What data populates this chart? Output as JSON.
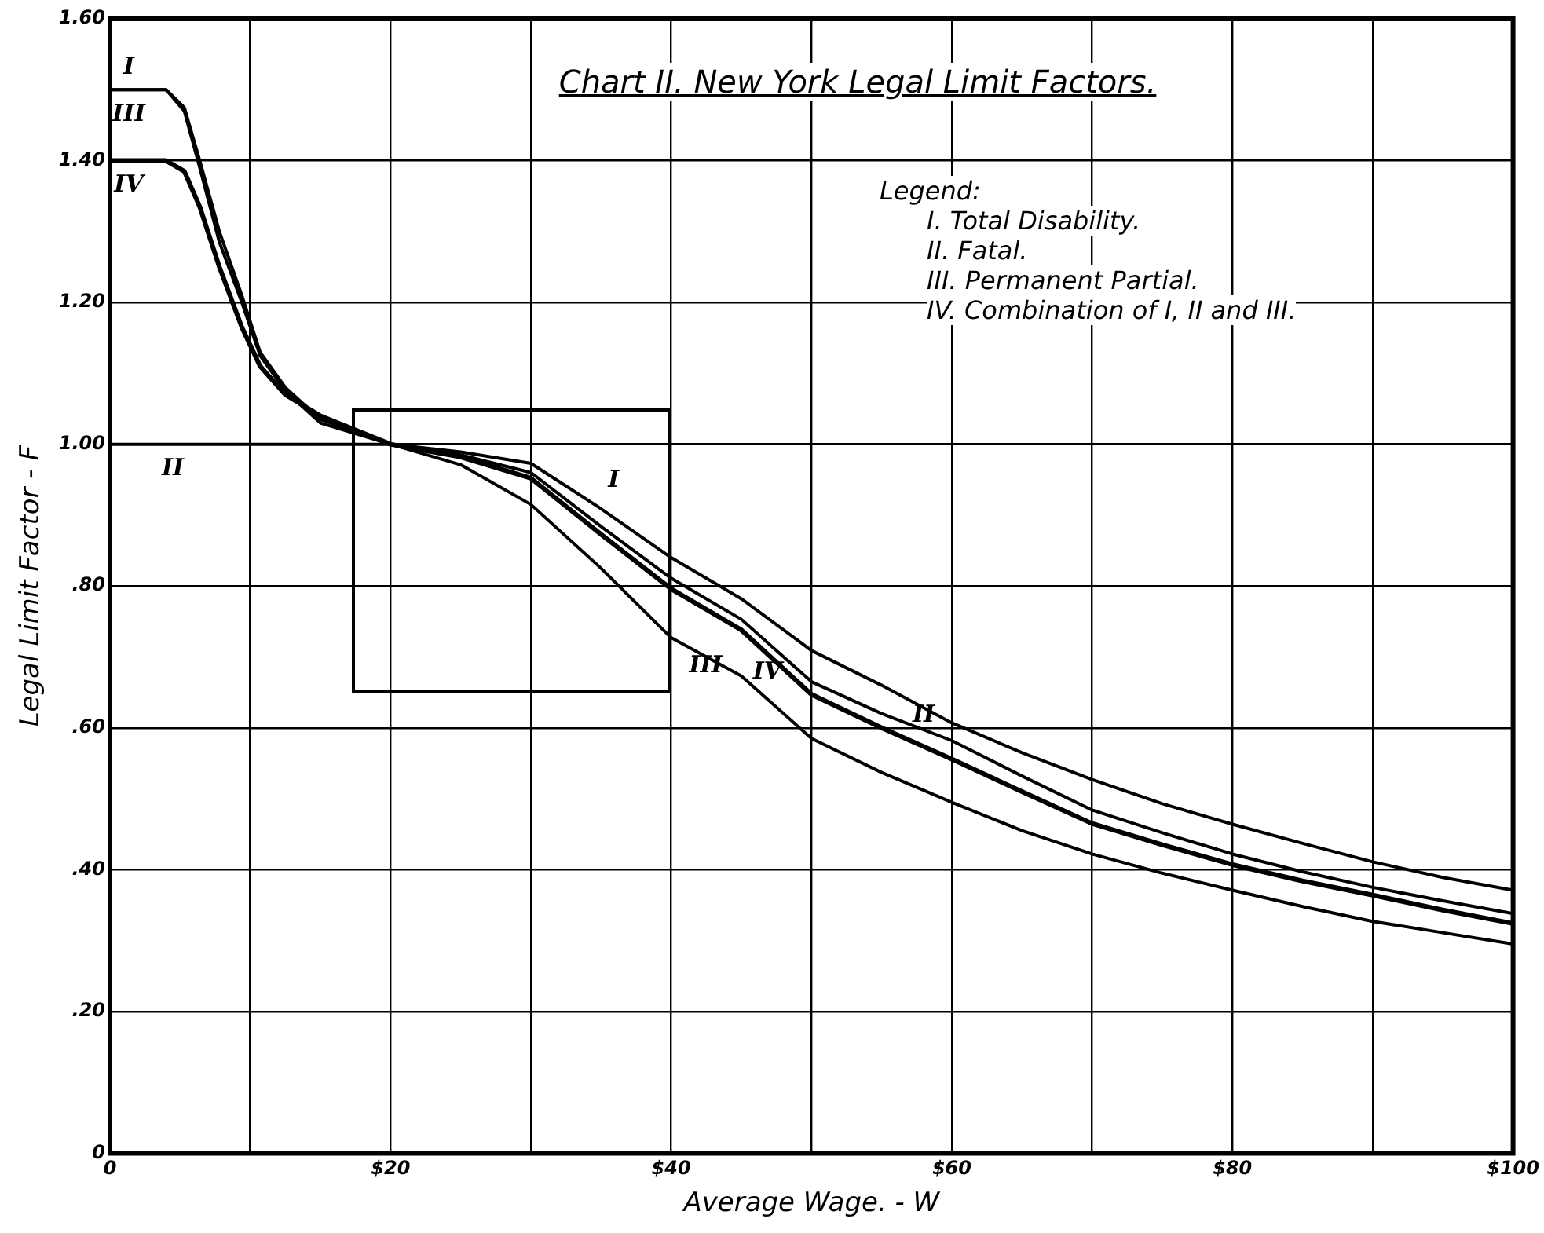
{
  "chart_data": {
    "type": "line",
    "title": "Chart II. New York Legal Limit Factors.",
    "xlabel": "Average Wage. - W",
    "ylabel": "Legal Limit Factor - F",
    "annotations": [
      "Legend:",
      "I. Total Disability.",
      "II. Fatal.",
      "III. Permanent Partial.",
      "IV. Combination of I, II and III."
    ],
    "x": [
      0,
      4,
      5.3,
      6.4,
      7.8,
      9.4,
      10.7,
      12.5,
      15,
      20,
      25,
      30,
      35,
      40,
      45,
      50,
      55,
      60,
      65,
      70,
      75,
      80,
      85,
      90,
      95,
      100
    ],
    "series": [
      {
        "name": "I",
        "color": "#000000",
        "values": [
          1.5,
          1.5,
          1.475,
          1.4,
          1.3,
          1.21,
          1.13,
          1.08,
          1.035,
          1.0,
          0.989,
          0.973,
          0.909,
          0.84,
          0.782,
          0.709,
          0.66,
          0.607,
          0.565,
          0.527,
          0.493,
          0.464,
          0.437,
          0.411,
          0.389,
          0.371
        ]
      },
      {
        "name": "II",
        "color": "#000000",
        "values": [
          1.0,
          1.0,
          1.0,
          1.0,
          1.0,
          1.0,
          1.0,
          1.0,
          1.0,
          1.0,
          0.985,
          0.96,
          0.884,
          0.811,
          0.753,
          0.665,
          0.62,
          0.582,
          0.532,
          0.484,
          0.452,
          0.422,
          0.397,
          0.375,
          0.356,
          0.338
        ]
      },
      {
        "name": "III",
        "color": "#000000",
        "values": [
          1.5,
          1.5,
          1.47,
          1.39,
          1.285,
          1.2,
          1.125,
          1.075,
          1.03,
          1.0,
          0.971,
          0.915,
          0.825,
          0.727,
          0.673,
          0.585,
          0.537,
          0.495,
          0.455,
          0.422,
          0.395,
          0.371,
          0.348,
          0.327,
          0.311,
          0.295
        ]
      },
      {
        "name": "IV",
        "color": "#000000",
        "values": [
          1.4,
          1.4,
          1.385,
          1.335,
          1.25,
          1.165,
          1.11,
          1.07,
          1.04,
          1.0,
          0.982,
          0.952,
          0.873,
          0.796,
          0.738,
          0.647,
          0.6,
          0.556,
          0.51,
          0.465,
          0.435,
          0.407,
          0.384,
          0.364,
          0.343,
          0.324
        ]
      }
    ],
    "xlim": [
      0,
      100
    ],
    "xticks": [
      0,
      {
        "value": 10,
        "label": null
      },
      {
        "value": 20,
        "label": "$20"
      },
      {
        "value": 30,
        "label": null
      },
      {
        "value": 40,
        "label": "$40"
      },
      {
        "value": 50,
        "label": null
      },
      {
        "value": 60,
        "label": "$60"
      },
      {
        "value": 70,
        "label": null
      },
      {
        "value": 80,
        "label": "$80"
      },
      {
        "value": 90,
        "label": null
      },
      {
        "value": 100,
        "label": "$100"
      }
    ],
    "ylim": [
      0,
      1.6
    ],
    "yticks": [
      0,
      {
        "value": 0.2,
        "label": ".20"
      },
      {
        "value": 0.4,
        "label": ".40"
      },
      {
        "value": 0.6,
        "label": ".60"
      },
      {
        "value": 0.8,
        "label": ".80"
      },
      {
        "value": 1,
        "label": "1.00"
      },
      {
        "value": 1.2,
        "label": "1.20"
      },
      {
        "value": 1.4,
        "label": "1.40"
      },
      {
        "value": 1.6,
        "label": "1.60"
      }
    ],
    "grid": true,
    "legend": false,
    "marker": "none",
    "line_style": "solid"
  }
}
